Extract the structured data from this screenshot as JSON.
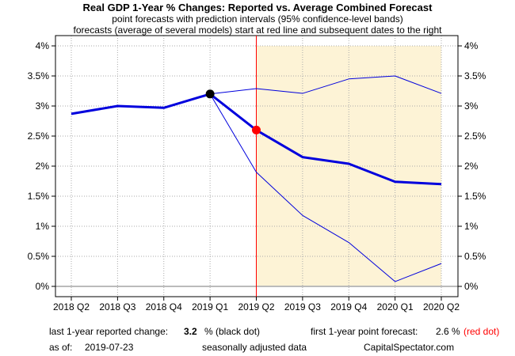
{
  "chart_data": {
    "type": "line",
    "title": "Real GDP 1-Year % Changes: Reported vs. Average Combined Forecast",
    "subtitle_1": "point forecasts with prediction intervals (95% confidence-level bands)",
    "subtitle_2": "forecasts (average of several models) start at red line and subsequent dates to the right",
    "categories": [
      "2018 Q2",
      "2018 Q3",
      "2018 Q4",
      "2019 Q1",
      "2019 Q2",
      "2019 Q3",
      "2019 Q4",
      "2020 Q1",
      "2020 Q2"
    ],
    "ylim": [
      0,
      4
    ],
    "yticks": [
      0,
      0.5,
      1,
      1.5,
      2,
      2.5,
      3,
      3.5,
      4
    ],
    "ytick_labels": [
      "0%",
      "0.5%",
      "1%",
      "1.5%",
      "2%",
      "2.5%",
      "3%",
      "3.5%",
      "4%"
    ],
    "grid": true,
    "forecast_start": "2019 Q2",
    "series": [
      {
        "values": [
          2.87,
          3.0,
          2.97,
          3.2,
          null,
          null,
          null,
          null,
          null
        ]
      },
      {
        "values": [
          null,
          null,
          null,
          3.2,
          2.6,
          2.15,
          2.04,
          1.74,
          1.7
        ]
      },
      {
        "values": [
          null,
          null,
          null,
          3.2,
          3.29,
          3.21,
          3.45,
          3.5,
          3.21
        ]
      },
      {
        "values": [
          null,
          null,
          null,
          3.2,
          1.9,
          1.18,
          0.73,
          0.08,
          0.38
        ]
      }
    ],
    "colors": {
      "reported": "#0000dd",
      "forecast": "#0000dd",
      "band": "#0000dd",
      "forecast_shade": "#fdf3d6",
      "forecast_line": "#ff0000",
      "zero_line": "#bbbbbb",
      "grid": "#aaaaaa"
    }
  },
  "footer": {
    "reported_label": "last 1-year reported change:",
    "reported_value": "3.2",
    "reported_unit": "% (black dot)",
    "forecast_label": "first 1-year point forecast:",
    "forecast_value": "2.6 %",
    "forecast_note": "(red dot)",
    "asof_label": "as of:",
    "asof_date": "2019-07-23",
    "adjusted_note": "seasonally adjusted data",
    "source": "CapitalSpectator.com"
  }
}
